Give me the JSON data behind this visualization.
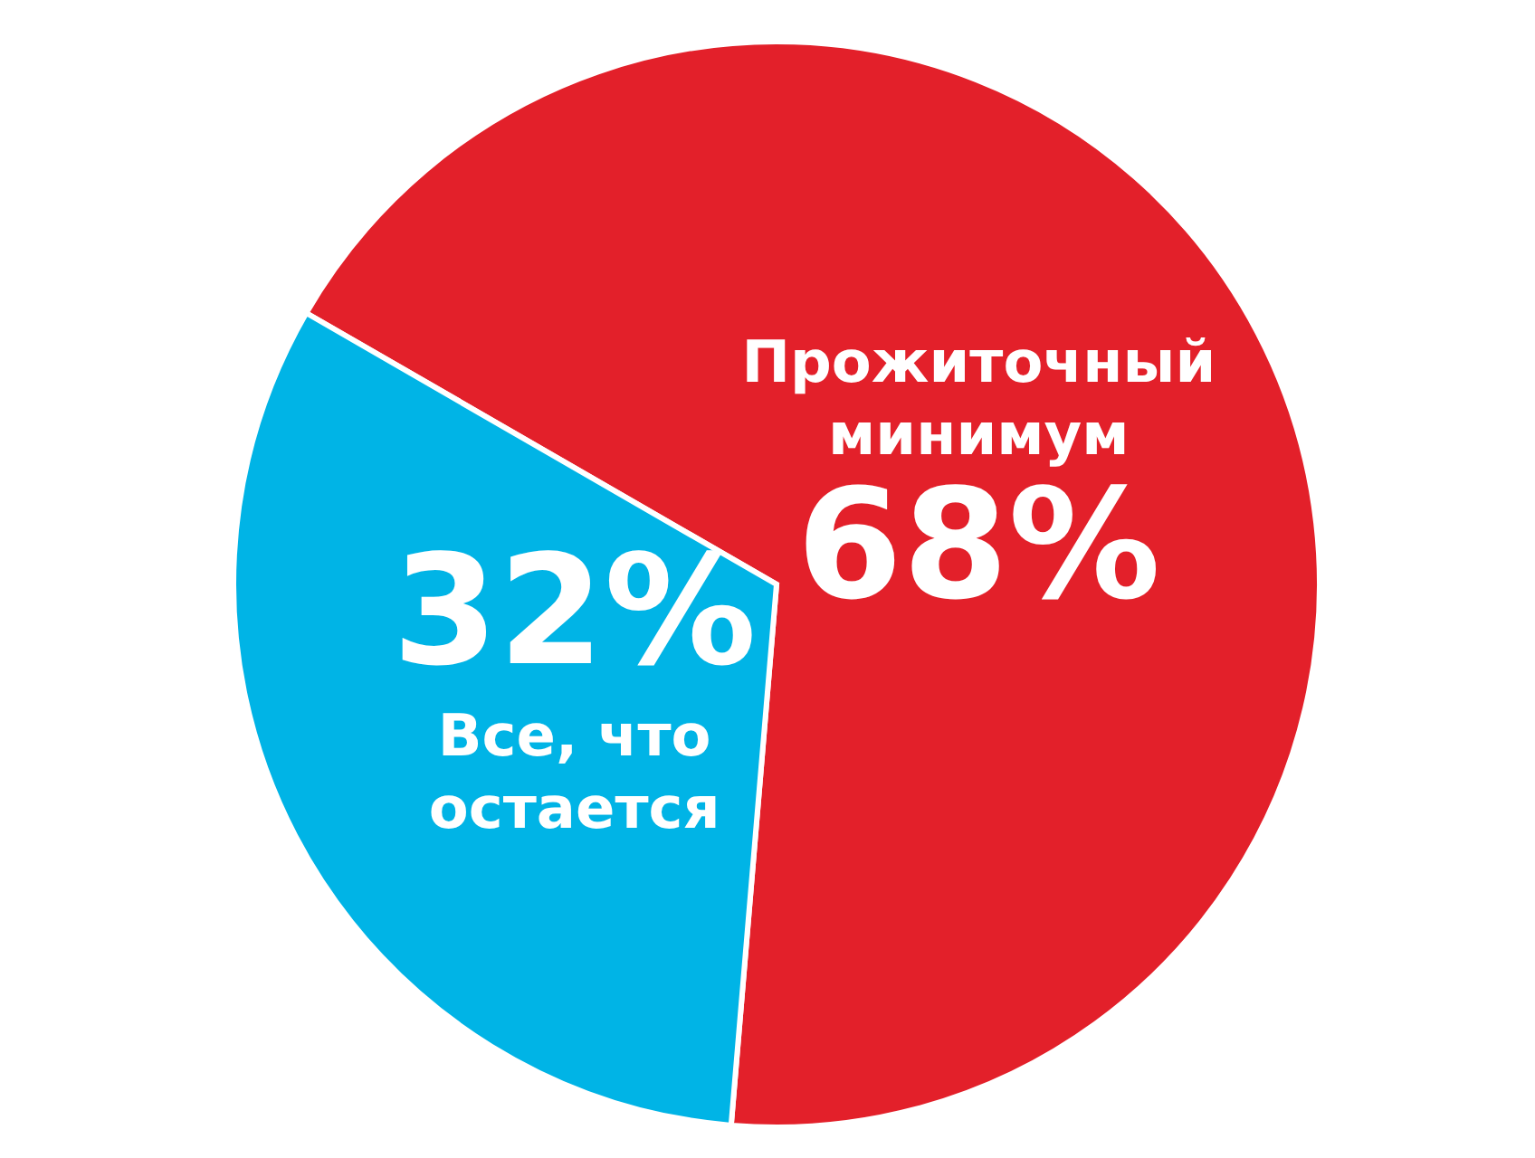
{
  "chart_data": {
    "type": "pie",
    "categories": [
      "Прожиточный минимум",
      "Все, что остается"
    ],
    "values": [
      68,
      32
    ],
    "colors": [
      "#e3202a",
      "#00b4e6"
    ],
    "value_labels": [
      "68%",
      "32%"
    ],
    "legend": false
  }
}
